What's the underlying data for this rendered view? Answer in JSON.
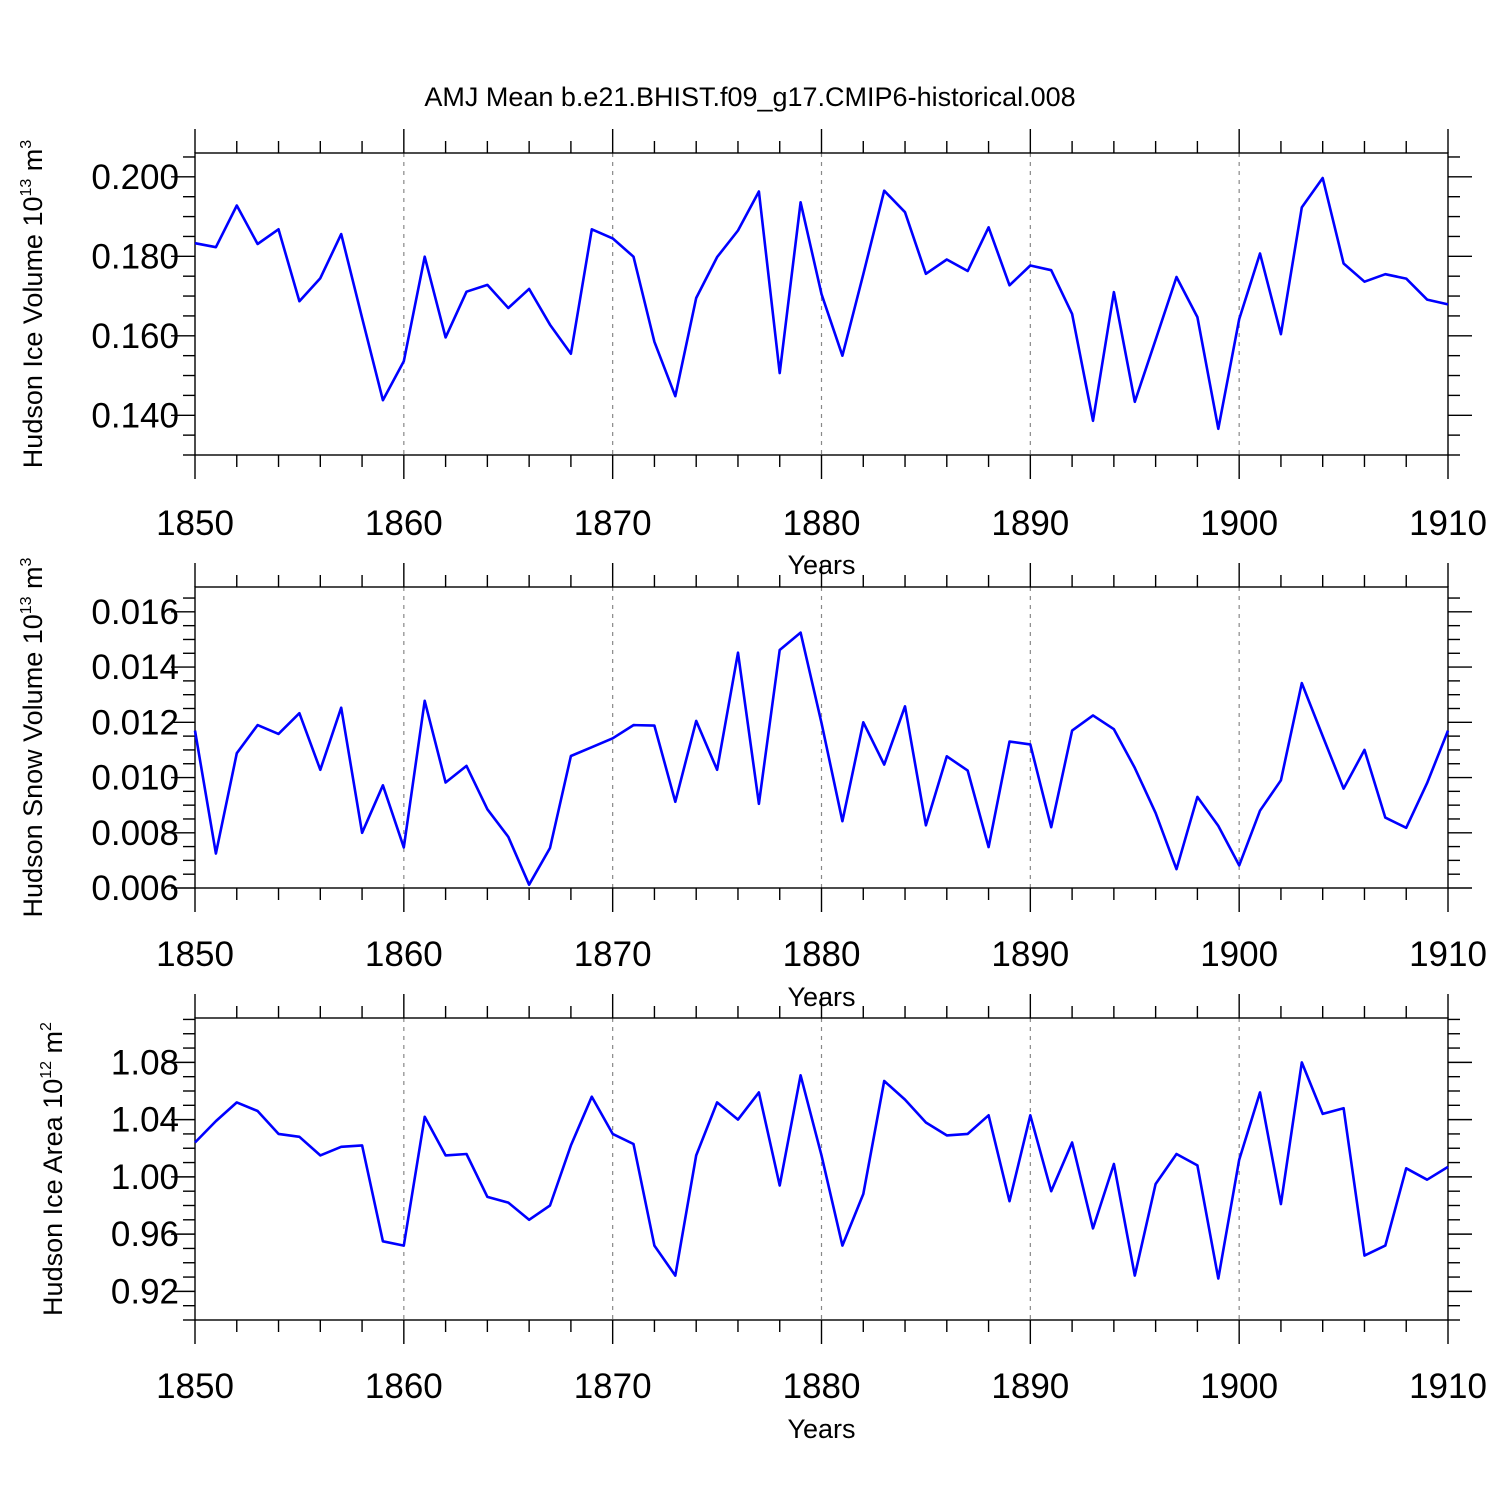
{
  "title": "AMJ Mean b.e21.BHIST.f09_g17.CMIP6-historical.008",
  "colors": {
    "line": "#0000ff",
    "grid": "#888888",
    "axis": "#000000"
  },
  "chart_data": [
    {
      "type": "line",
      "ylabel_text": "Hudson Ice Volume 10",
      "ylabel_exp": "13",
      "ylabel_unit": " m",
      "ylabel_unit_exp": "3",
      "xlabel": "Years",
      "xlim": [
        1850,
        1910
      ],
      "ylim": [
        0.13,
        0.206
      ],
      "yticks": [
        0.14,
        0.16,
        0.18,
        0.2
      ],
      "ytick_labels": [
        "0.140",
        "0.160",
        "0.180",
        "0.200"
      ],
      "xticks": [
        1850,
        1860,
        1870,
        1880,
        1890,
        1900,
        1910
      ],
      "xtick_labels": [
        "1850",
        "1860",
        "1870",
        "1880",
        "1890",
        "1900",
        "1910"
      ],
      "start_year": 1850,
      "values": [
        0.1833,
        0.1823,
        0.1928,
        0.1831,
        0.1868,
        0.1687,
        0.1745,
        0.1856,
        0.1645,
        0.1438,
        0.1536,
        0.1799,
        0.1596,
        0.1711,
        0.1728,
        0.167,
        0.1718,
        0.1628,
        0.1555,
        0.1868,
        0.1845,
        0.1799,
        0.1585,
        0.1448,
        0.1695,
        0.1798,
        0.1865,
        0.1963,
        0.1506,
        0.1936,
        0.1705,
        0.155,
        0.1755,
        0.1965,
        0.1911,
        0.1756,
        0.1792,
        0.1763,
        0.1873,
        0.1727,
        0.1777,
        0.1765,
        0.1655,
        0.1386,
        0.171,
        0.1434,
        0.159,
        0.1748,
        0.1647,
        0.1366,
        0.1642,
        0.1807,
        0.1604,
        0.1923,
        0.1997,
        0.1782,
        0.1736,
        0.1755,
        0.1744,
        0.1691,
        0.1679
      ]
    },
    {
      "type": "line",
      "ylabel_text": "Hudson Snow Volume 10",
      "ylabel_exp": "13",
      "ylabel_unit": " m",
      "ylabel_unit_exp": "3",
      "xlabel": "Years",
      "xlim": [
        1850,
        1910
      ],
      "ylim": [
        0.006,
        0.0169
      ],
      "yticks": [
        0.006,
        0.008,
        0.01,
        0.012,
        0.014,
        0.016
      ],
      "ytick_labels": [
        "0.006",
        "0.008",
        "0.010",
        "0.012",
        "0.014",
        "0.016"
      ],
      "xticks": [
        1850,
        1860,
        1870,
        1880,
        1890,
        1900,
        1910
      ],
      "xtick_labels": [
        "1850",
        "1860",
        "1870",
        "1880",
        "1890",
        "1900",
        "1910"
      ],
      "start_year": 1850,
      "values": [
        0.0117,
        0.00725,
        0.01088,
        0.0119,
        0.01158,
        0.01233,
        0.01028,
        0.01253,
        0.008,
        0.00972,
        0.00747,
        0.01278,
        0.00982,
        0.01042,
        0.00885,
        0.00785,
        0.00612,
        0.00745,
        0.01078,
        0.0111,
        0.01142,
        0.0119,
        0.01188,
        0.00912,
        0.01205,
        0.01028,
        0.01452,
        0.00905,
        0.01462,
        0.01525,
        0.01198,
        0.00842,
        0.012,
        0.01047,
        0.01258,
        0.00827,
        0.01077,
        0.01025,
        0.00748,
        0.0113,
        0.0112,
        0.0082,
        0.0117,
        0.01225,
        0.01175,
        0.01035,
        0.00872,
        0.00668,
        0.0093,
        0.00825,
        0.00682,
        0.0088,
        0.0099,
        0.01342,
        0.0115,
        0.0096,
        0.011,
        0.00855,
        0.00818,
        0.0098,
        0.0117
      ]
    },
    {
      "type": "line",
      "ylabel_text": "Hudson Ice Area 10",
      "ylabel_exp": "12",
      "ylabel_unit": " m",
      "ylabel_unit_exp": "2",
      "xlabel": "Years",
      "xlim": [
        1850,
        1910
      ],
      "ylim": [
        0.9,
        1.111
      ],
      "yticks": [
        0.92,
        0.96,
        1.0,
        1.04,
        1.08
      ],
      "ytick_labels": [
        "0.92",
        "0.96",
        "1.00",
        "1.04",
        "1.08"
      ],
      "xticks": [
        1850,
        1860,
        1870,
        1880,
        1890,
        1900,
        1910
      ],
      "xtick_labels": [
        "1850",
        "1860",
        "1870",
        "1880",
        "1890",
        "1900",
        "1910"
      ],
      "start_year": 1850,
      "values": [
        1.024,
        1.039,
        1.052,
        1.046,
        1.03,
        1.028,
        1.015,
        1.021,
        1.022,
        0.955,
        0.952,
        1.042,
        1.015,
        1.016,
        0.986,
        0.982,
        0.97,
        0.98,
        1.022,
        1.056,
        1.03,
        1.023,
        0.952,
        0.931,
        1.015,
        1.052,
        1.04,
        1.059,
        0.994,
        1.071,
        1.015,
        0.952,
        0.988,
        1.067,
        1.054,
        1.038,
        1.029,
        1.03,
        1.043,
        0.983,
        1.043,
        0.99,
        1.024,
        0.964,
        1.009,
        0.931,
        0.995,
        1.016,
        1.008,
        0.929,
        1.012,
        1.059,
        0.981,
        1.08,
        1.044,
        1.048,
        0.945,
        0.952,
        1.006,
        0.998,
        1.007
      ]
    }
  ]
}
